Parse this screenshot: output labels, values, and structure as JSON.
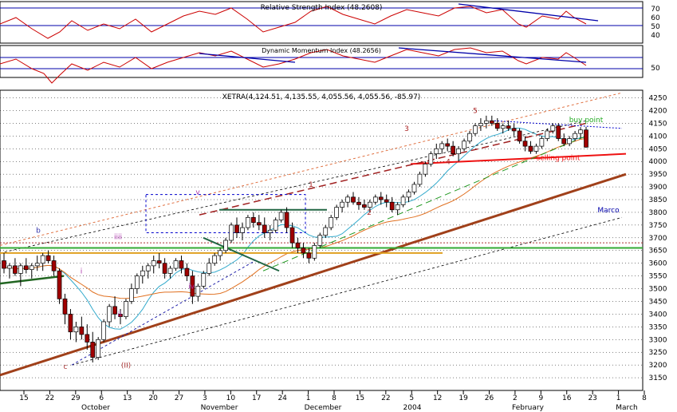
{
  "chart_data": {
    "type": "candlestick",
    "symbol": "XETRA",
    "ohlc_label": "XETRA(4,124.51, 4,135.55, 4,055.56, 4,055.56, -85.97)",
    "panels": {
      "rsi": {
        "title": "Relative Strength Index (48.2608)",
        "ticks": [
          "70",
          "60",
          "50",
          "40"
        ]
      },
      "dmi": {
        "title": "Dynamic Momentum Index (48.2656)",
        "ticks": [
          "50"
        ]
      },
      "price": {
        "ylim": [
          3100,
          4280
        ],
        "ticks": [
          3150,
          3200,
          3250,
          3300,
          3350,
          3400,
          3450,
          3500,
          3550,
          3600,
          3650,
          3700,
          3750,
          3800,
          3850,
          3900,
          3950,
          4000,
          4050,
          4100,
          4150,
          4200,
          4250
        ]
      }
    },
    "x_tick_labels": [
      "15",
      "22",
      "29",
      "6",
      "13",
      "20",
      "27",
      "3",
      "10",
      "17",
      "24",
      "1",
      "8",
      "15",
      "22",
      "5",
      "12",
      "19",
      "26",
      "2",
      "9",
      "16",
      "23",
      "1",
      "8"
    ],
    "month_labels": [
      "October",
      "November",
      "December",
      "2004",
      "February",
      "March"
    ],
    "annotations": [
      "b",
      "iiii",
      "i",
      "ii",
      "c",
      "(II)",
      "v",
      "iv",
      "1",
      "2",
      "3",
      "4",
      "5",
      "buy point",
      "selling point",
      "Marco"
    ],
    "candles": [
      [
        3610,
        3640,
        3560,
        3580
      ],
      [
        3580,
        3600,
        3540,
        3590
      ],
      [
        3590,
        3620,
        3550,
        3560
      ],
      [
        3560,
        3600,
        3510,
        3590
      ],
      [
        3590,
        3620,
        3560,
        3575
      ],
      [
        3575,
        3600,
        3540,
        3590
      ],
      [
        3590,
        3630,
        3570,
        3600
      ],
      [
        3600,
        3640,
        3570,
        3630
      ],
      [
        3630,
        3650,
        3600,
        3610
      ],
      [
        3610,
        3630,
        3550,
        3570
      ],
      [
        3570,
        3580,
        3440,
        3460
      ],
      [
        3460,
        3480,
        3360,
        3400
      ],
      [
        3400,
        3420,
        3300,
        3330
      ],
      [
        3330,
        3370,
        3290,
        3350
      ],
      [
        3350,
        3390,
        3300,
        3320
      ],
      [
        3320,
        3360,
        3260,
        3290
      ],
      [
        3290,
        3330,
        3210,
        3230
      ],
      [
        3230,
        3310,
        3220,
        3300
      ],
      [
        3300,
        3380,
        3290,
        3370
      ],
      [
        3370,
        3440,
        3350,
        3430
      ],
      [
        3430,
        3470,
        3380,
        3400
      ],
      [
        3400,
        3420,
        3360,
        3390
      ],
      [
        3390,
        3460,
        3380,
        3450
      ],
      [
        3450,
        3520,
        3440,
        3500
      ],
      [
        3500,
        3560,
        3480,
        3550
      ],
      [
        3550,
        3590,
        3520,
        3570
      ],
      [
        3570,
        3600,
        3540,
        3590
      ],
      [
        3590,
        3630,
        3560,
        3610
      ],
      [
        3610,
        3640,
        3580,
        3600
      ],
      [
        3600,
        3620,
        3540,
        3560
      ],
      [
        3560,
        3590,
        3540,
        3580
      ],
      [
        3580,
        3620,
        3570,
        3610
      ],
      [
        3610,
        3630,
        3560,
        3580
      ],
      [
        3580,
        3600,
        3530,
        3550
      ],
      [
        3550,
        3570,
        3440,
        3470
      ],
      [
        3470,
        3520,
        3450,
        3510
      ],
      [
        3510,
        3570,
        3500,
        3560
      ],
      [
        3560,
        3620,
        3550,
        3600
      ],
      [
        3600,
        3640,
        3590,
        3630
      ],
      [
        3630,
        3660,
        3610,
        3650
      ],
      [
        3650,
        3700,
        3640,
        3690
      ],
      [
        3690,
        3760,
        3680,
        3750
      ],
      [
        3750,
        3780,
        3700,
        3720
      ],
      [
        3720,
        3760,
        3690,
        3740
      ],
      [
        3740,
        3790,
        3730,
        3780
      ],
      [
        3780,
        3800,
        3740,
        3760
      ],
      [
        3760,
        3790,
        3730,
        3750
      ],
      [
        3750,
        3780,
        3700,
        3720
      ],
      [
        3720,
        3750,
        3690,
        3730
      ],
      [
        3730,
        3780,
        3720,
        3770
      ],
      [
        3770,
        3810,
        3760,
        3800
      ],
      [
        3800,
        3820,
        3720,
        3740
      ],
      [
        3740,
        3760,
        3660,
        3680
      ],
      [
        3680,
        3700,
        3640,
        3660
      ],
      [
        3660,
        3680,
        3620,
        3640
      ],
      [
        3640,
        3660,
        3600,
        3620
      ],
      [
        3620,
        3680,
        3610,
        3670
      ],
      [
        3670,
        3720,
        3660,
        3710
      ],
      [
        3710,
        3750,
        3700,
        3740
      ],
      [
        3740,
        3790,
        3730,
        3780
      ],
      [
        3780,
        3830,
        3770,
        3820
      ],
      [
        3820,
        3850,
        3800,
        3840
      ],
      [
        3840,
        3870,
        3820,
        3860
      ],
      [
        3860,
        3880,
        3830,
        3840
      ],
      [
        3840,
        3860,
        3810,
        3830
      ],
      [
        3830,
        3850,
        3810,
        3820
      ],
      [
        3820,
        3850,
        3800,
        3840
      ],
      [
        3840,
        3870,
        3830,
        3860
      ],
      [
        3860,
        3880,
        3830,
        3850
      ],
      [
        3850,
        3870,
        3820,
        3840
      ],
      [
        3840,
        3860,
        3800,
        3810
      ],
      [
        3810,
        3840,
        3790,
        3830
      ],
      [
        3830,
        3870,
        3820,
        3860
      ],
      [
        3860,
        3890,
        3840,
        3880
      ],
      [
        3880,
        3920,
        3870,
        3910
      ],
      [
        3910,
        3960,
        3900,
        3950
      ],
      [
        3950,
        4000,
        3940,
        3990
      ],
      [
        3990,
        4040,
        3980,
        4030
      ],
      [
        4030,
        4070,
        4010,
        4050
      ],
      [
        4050,
        4080,
        4030,
        4070
      ],
      [
        4070,
        4090,
        4040,
        4060
      ],
      [
        4060,
        4080,
        4020,
        4030
      ],
      [
        4030,
        4060,
        4000,
        4050
      ],
      [
        4050,
        4090,
        4040,
        4080
      ],
      [
        4080,
        4120,
        4070,
        4110
      ],
      [
        4110,
        4150,
        4100,
        4140
      ],
      [
        4140,
        4170,
        4120,
        4150
      ],
      [
        4150,
        4180,
        4130,
        4160
      ],
      [
        4160,
        4180,
        4140,
        4150
      ],
      [
        4150,
        4170,
        4120,
        4130
      ],
      [
        4130,
        4150,
        4110,
        4140
      ],
      [
        4140,
        4160,
        4120,
        4130
      ],
      [
        4130,
        4150,
        4100,
        4120
      ],
      [
        4120,
        4130,
        4070,
        4080
      ],
      [
        4080,
        4100,
        4040,
        4060
      ],
      [
        4060,
        4080,
        4030,
        4040
      ],
      [
        4040,
        4070,
        4030,
        4060
      ],
      [
        4060,
        4100,
        4050,
        4090
      ],
      [
        4090,
        4130,
        4080,
        4120
      ],
      [
        4120,
        4150,
        4110,
        4140
      ],
      [
        4140,
        4150,
        4080,
        4090
      ],
      [
        4090,
        4110,
        4060,
        4070
      ],
      [
        4070,
        4100,
        4060,
        4090
      ],
      [
        4090,
        4120,
        4080,
        4110
      ],
      [
        4110,
        4135,
        4090,
        4124
      ],
      [
        4124,
        4136,
        4055,
        4056
      ]
    ]
  }
}
